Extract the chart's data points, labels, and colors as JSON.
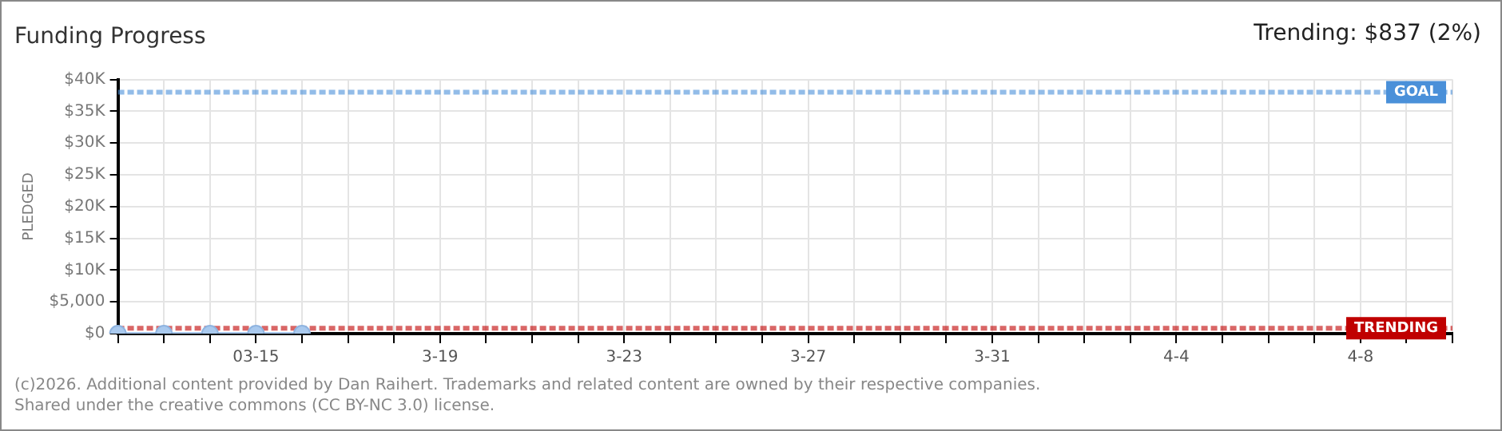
{
  "chart_data": {
    "type": "line",
    "title": "Funding Progress",
    "categories": [
      null,
      null,
      null,
      "03-15",
      null,
      null,
      null,
      "3-19",
      null,
      null,
      null,
      "3-23",
      null,
      null,
      null,
      "3-27",
      null,
      null,
      null,
      "3-31",
      null,
      null,
      null,
      "4-4",
      null,
      null,
      null,
      "4-8",
      null,
      null
    ],
    "series": [
      {
        "color": "#a9c9ee",
        "values": [
          0,
          0,
          0,
          0,
          0,
          null,
          null,
          null,
          null,
          null,
          null,
          null,
          null,
          null,
          null,
          null,
          null,
          null,
          null,
          null,
          null,
          null,
          null,
          null,
          null,
          null,
          null,
          null,
          null,
          null
        ]
      }
    ],
    "ylabel": "PLEDGED",
    "ylim": [
      0,
      40000
    ],
    "yticks": [
      {
        "value": 0,
        "label": "$0"
      },
      {
        "value": 5000,
        "label": "$5,000"
      },
      {
        "value": 10000,
        "label": "$10K"
      },
      {
        "value": 15000,
        "label": "$15K"
      },
      {
        "value": 20000,
        "label": "$20K"
      },
      {
        "value": 25000,
        "label": "$25K"
      },
      {
        "value": 30000,
        "label": "$30K"
      },
      {
        "value": 35000,
        "label": "$35K"
      },
      {
        "value": 40000,
        "label": "$40K"
      }
    ],
    "ref_lines": [
      {
        "axis": "y",
        "value": 38000,
        "label": "GOAL",
        "color": "#4a90d9",
        "line_style": "dashed"
      },
      {
        "axis": "y",
        "value": 837,
        "label": "TRENDING",
        "color": "#c00000",
        "line_style": "dashed"
      }
    ],
    "annotations": [
      "Trending: $837 (2%)",
      "(c)2026. Additional content provided by Dan Raihert. Trademarks and related content are owned by their respective companies.",
      "Shared under the creative commons (CC BY-NC 3.0) license."
    ],
    "grid": true,
    "marker": "circle",
    "line_style": "solid",
    "legend": false
  }
}
